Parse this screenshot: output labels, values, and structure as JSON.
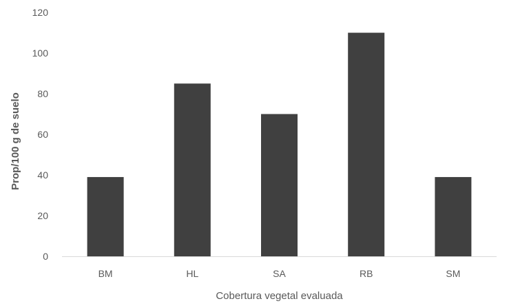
{
  "chart_data": {
    "type": "bar",
    "categories": [
      "BM",
      "HL",
      "SA",
      "RB",
      "SM"
    ],
    "values": [
      39,
      85,
      70,
      110,
      39
    ],
    "ylim": [
      0,
      120
    ],
    "yticks": [
      0,
      20,
      40,
      60,
      80,
      100,
      120
    ],
    "xlabel": "Cobertura vegetal evaluada",
    "ylabel": "Prop/100 g de suelo",
    "grid": false,
    "legend": "none",
    "bar_color": "#404040",
    "axis_color": "#d9d9d9",
    "text_color": "#595959"
  }
}
